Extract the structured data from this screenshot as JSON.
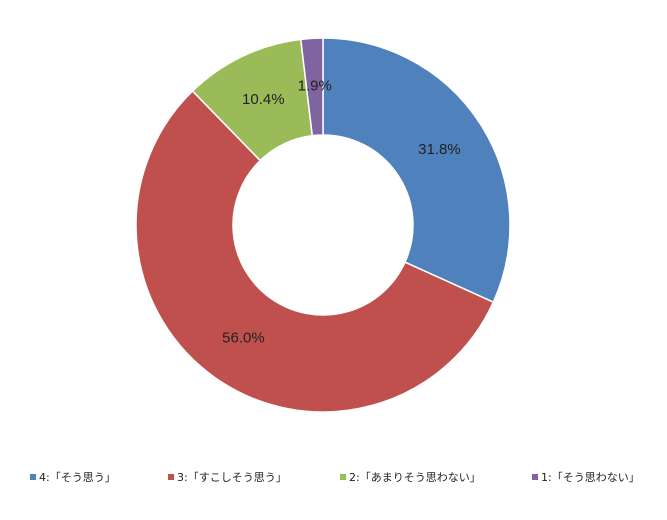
{
  "chart_data": {
    "type": "donut",
    "categories": [
      "4:「そう思う」",
      "3:「すこしそう思う」",
      "2:「あまりそう思わない」",
      "1:「そう思わない」"
    ],
    "series": [
      {
        "values": [
          31.8,
          56.0,
          10.4,
          1.9
        ],
        "value_labels": [
          "31.8%",
          "56.0%",
          "10.4%",
          "1.9%"
        ],
        "colors": [
          "#4f81bd",
          "#c0504d",
          "#9bbb59",
          "#8064a2"
        ]
      }
    ],
    "legend": "bottom"
  }
}
